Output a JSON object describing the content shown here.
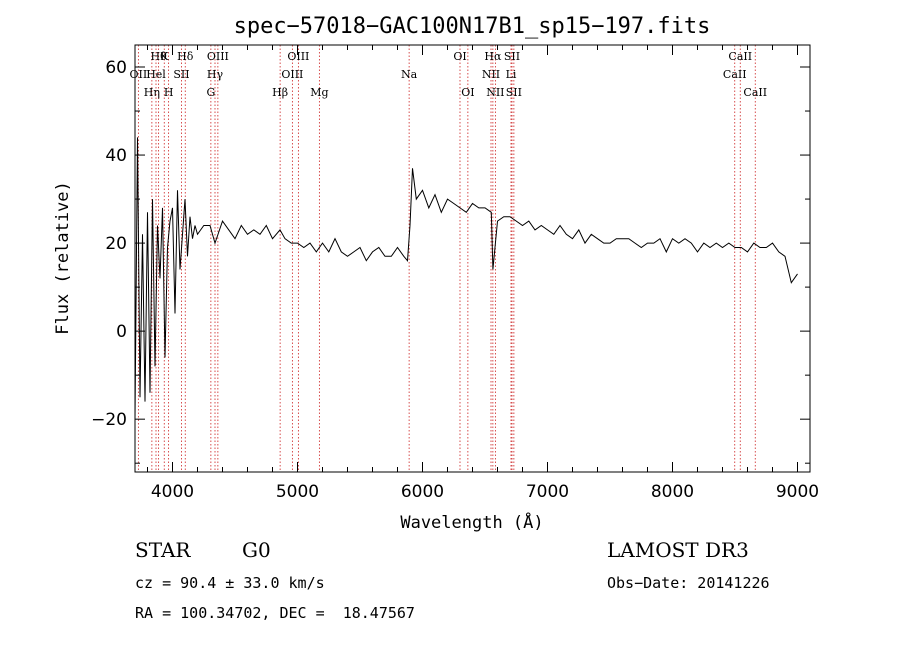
{
  "chart_data": {
    "type": "line",
    "title": "spec−57018−GAC100N17B1_sp15−197.fits",
    "xlabel": "Wavelength (Å)",
    "ylabel": "Flux (relative)",
    "xlim": [
      3700,
      9100
    ],
    "ylim": [
      -32,
      65
    ],
    "xticks": [
      4000,
      5000,
      6000,
      7000,
      8000,
      9000
    ],
    "xtick_labels": [
      "4000",
      "5000",
      "6000",
      "7000",
      "8000",
      "9000"
    ],
    "yticks": [
      -20,
      0,
      20,
      40,
      60
    ],
    "ytick_labels": [
      "−20",
      "0",
      "20",
      "40",
      "60"
    ],
    "grid": false,
    "series": [
      {
        "x": [
          3700,
          3720,
          3740,
          3760,
          3780,
          3800,
          3820,
          3840,
          3860,
          3880,
          3900,
          3920,
          3940,
          3960,
          3980,
          4000,
          4020,
          4040,
          4060,
          4080,
          4100,
          4120,
          4140,
          4160,
          4180,
          4200,
          4250,
          4300,
          4340,
          4400,
          4450,
          4500,
          4550,
          4600,
          4650,
          4700,
          4750,
          4800,
          4860,
          4900,
          4950,
          5000,
          5050,
          5100,
          5150,
          5200,
          5250,
          5300,
          5350,
          5400,
          5450,
          5500,
          5550,
          5600,
          5650,
          5700,
          5750,
          5800,
          5850,
          5880,
          5900,
          5920,
          5950,
          6000,
          6050,
          6100,
          6150,
          6200,
          6250,
          6300,
          6350,
          6400,
          6450,
          6500,
          6550,
          6563,
          6600,
          6650,
          6700,
          6750,
          6800,
          6850,
          6900,
          6950,
          7000,
          7050,
          7100,
          7150,
          7200,
          7250,
          7300,
          7350,
          7400,
          7450,
          7500,
          7550,
          7600,
          7650,
          7700,
          7750,
          7800,
          7850,
          7900,
          7950,
          8000,
          8050,
          8100,
          8150,
          8200,
          8250,
          8300,
          8350,
          8400,
          8450,
          8500,
          8550,
          8600,
          8650,
          8700,
          8750,
          8800,
          8850,
          8900,
          8950,
          9000
        ],
        "y": [
          -20,
          44,
          -15,
          22,
          -16,
          27,
          -14,
          30,
          -8,
          24,
          12,
          28,
          -6,
          19,
          25,
          28,
          4,
          32,
          14,
          22,
          30,
          17,
          26,
          21,
          24,
          22,
          24,
          24,
          20,
          25,
          23,
          21,
          24,
          22,
          23,
          22,
          24,
          21,
          23,
          21,
          20,
          20,
          19,
          20,
          18,
          20,
          18,
          21,
          18,
          17,
          18,
          19,
          16,
          18,
          19,
          17,
          17,
          19,
          17,
          16,
          24,
          37,
          30,
          32,
          28,
          31,
          27,
          30,
          29,
          28,
          27,
          29,
          28,
          28,
          27,
          14,
          25,
          26,
          26,
          25,
          24,
          25,
          23,
          24,
          23,
          22,
          24,
          22,
          21,
          23,
          20,
          22,
          21,
          20,
          20,
          21,
          21,
          21,
          20,
          19,
          20,
          20,
          21,
          18,
          21,
          20,
          21,
          20,
          18,
          20,
          19,
          20,
          19,
          20,
          19,
          19,
          18,
          20,
          19,
          19,
          20,
          18,
          17,
          11,
          13
        ]
      }
    ],
    "emission_lines": [
      {
        "x": 3727,
        "label": "OII",
        "row": 1
      },
      {
        "x": 3835,
        "label": "Hη",
        "row": 2
      },
      {
        "x": 3868,
        "label": "Hel",
        "row": 1
      },
      {
        "x": 3889,
        "label": "Hθ",
        "row": 0
      },
      {
        "x": 3934,
        "label": "K",
        "row": 0
      },
      {
        "x": 3969,
        "label": "H",
        "row": 2
      },
      {
        "x": 4072,
        "label": "SII",
        "row": 1
      },
      {
        "x": 4102,
        "label": "Hδ",
        "row": 0
      },
      {
        "x": 4307,
        "label": "G",
        "row": 2
      },
      {
        "x": 4340,
        "label": "Hγ",
        "row": 1
      },
      {
        "x": 4363,
        "label": "OIII",
        "row": 0
      },
      {
        "x": 4861,
        "label": "Hβ",
        "row": 2
      },
      {
        "x": 4959,
        "label": "OIII",
        "row": 1
      },
      {
        "x": 5007,
        "label": "OIII",
        "row": 0
      },
      {
        "x": 5175,
        "label": "Mg",
        "row": 2
      },
      {
        "x": 5893,
        "label": "Na",
        "row": 1
      },
      {
        "x": 6300,
        "label": "OI",
        "row": 0
      },
      {
        "x": 6363,
        "label": "OI",
        "row": 2
      },
      {
        "x": 6548,
        "label": "NII",
        "row": 1
      },
      {
        "x": 6563,
        "label": "Hα",
        "row": 0
      },
      {
        "x": 6583,
        "label": "NII",
        "row": 2
      },
      {
        "x": 6708,
        "label": "Li",
        "row": 1
      },
      {
        "x": 6716,
        "label": "SII",
        "row": 0
      },
      {
        "x": 6731,
        "label": "SII",
        "row": 2
      },
      {
        "x": 8498,
        "label": "CaII",
        "row": 1
      },
      {
        "x": 8542,
        "label": "CaII",
        "row": 0
      },
      {
        "x": 8662,
        "label": "CaII",
        "row": 2
      }
    ]
  },
  "info": {
    "class": "STAR",
    "subclass": "G0",
    "survey": "LAMOST DR3",
    "cz": "cz = 90.4 ± 33.0 km/s",
    "obs_date": "Obs−Date: 20141226",
    "coords": "RA = 100.34702, DEC =  18.47567"
  }
}
